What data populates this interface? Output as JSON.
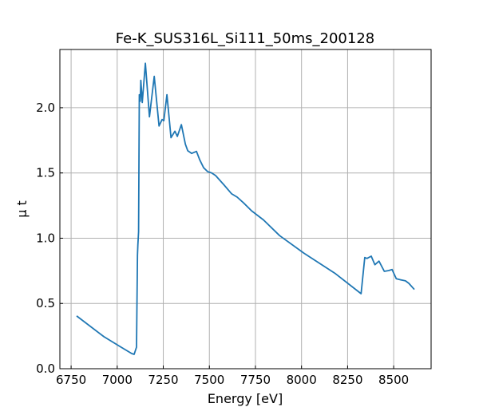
{
  "chart_data": {
    "type": "line",
    "title": "Fe-K_SUS316L_Si111_50ms_200128",
    "xlabel": "Energy [eV]",
    "ylabel": "μ t",
    "xlim": [
      6689,
      8703
    ],
    "ylim": [
      0,
      2.446
    ],
    "grid": true,
    "xticks": [
      6750,
      7000,
      7250,
      7500,
      7750,
      8000,
      8250,
      8500
    ],
    "xtick_labels": [
      "6750",
      "7000",
      "7250",
      "7500",
      "7750",
      "8000",
      "8250",
      "8500"
    ],
    "yticks": [
      0,
      0.5,
      1.0,
      1.5,
      2.0
    ],
    "ytick_labels": [
      "0.0",
      "0.5",
      "1.0",
      "1.5",
      "2.0"
    ],
    "color": "#1f77b4",
    "series": [
      {
        "name": "mu_t",
        "x": [
          6780,
          6928,
          7014,
          7079,
          7092,
          7105,
          7110,
          7112,
          7116,
          7120,
          7125,
          7128,
          7136,
          7153,
          7175,
          7201,
          7227,
          7244,
          7253,
          7270,
          7292,
          7313,
          7326,
          7348,
          7370,
          7383,
          7404,
          7430,
          7448,
          7469,
          7491,
          7513,
          7534,
          7578,
          7621,
          7651,
          7686,
          7729,
          7794,
          7881,
          8011,
          8184,
          8323,
          8343,
          8355,
          8378,
          8398,
          8420,
          8449,
          8473,
          8491,
          8514,
          8538,
          8564,
          8582,
          8612
        ],
        "y": [
          0.404,
          0.245,
          0.171,
          0.116,
          0.11,
          0.165,
          0.87,
          0.95,
          1.05,
          2.1,
          2.05,
          2.21,
          2.04,
          2.34,
          1.93,
          2.24,
          1.86,
          1.91,
          1.9,
          2.1,
          1.77,
          1.82,
          1.78,
          1.87,
          1.72,
          1.67,
          1.65,
          1.665,
          1.6,
          1.54,
          1.51,
          1.5,
          1.48,
          1.41,
          1.34,
          1.315,
          1.27,
          1.21,
          1.14,
          1.02,
          0.887,
          0.728,
          0.575,
          0.852,
          0.845,
          0.862,
          0.797,
          0.824,
          0.746,
          0.752,
          0.76,
          0.689,
          0.681,
          0.673,
          0.654,
          0.607
        ]
      }
    ]
  }
}
